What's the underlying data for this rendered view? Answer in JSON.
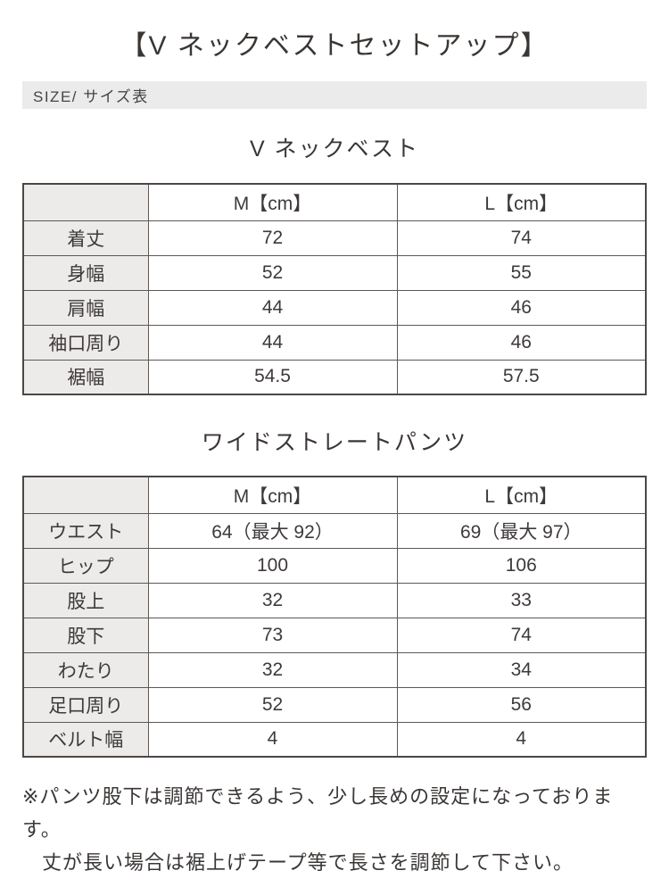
{
  "page": {
    "title": "【V ネックベストセットアップ】"
  },
  "size_bar": {
    "label": "SIZE/ サイズ表"
  },
  "tables": [
    {
      "title": "V ネックベスト",
      "columns": {
        "size_m": "M【cm】",
        "size_l": "L【cm】"
      },
      "rows": [
        {
          "label": "着丈",
          "m": "72",
          "l": "74"
        },
        {
          "label": "身幅",
          "m": "52",
          "l": "55"
        },
        {
          "label": "肩幅",
          "m": "44",
          "l": "46"
        },
        {
          "label": "袖口周り",
          "m": "44",
          "l": "46"
        },
        {
          "label": "裾幅",
          "m": "54.5",
          "l": "57.5"
        }
      ]
    },
    {
      "title": "ワイドストレートパンツ",
      "columns": {
        "size_m": "M【cm】",
        "size_l": "L【cm】"
      },
      "rows": [
        {
          "label": "ウエスト",
          "m": "64（最大 92）",
          "l": "69（最大 97）"
        },
        {
          "label": "ヒップ",
          "m": "100",
          "l": "106"
        },
        {
          "label": "股上",
          "m": "32",
          "l": "33"
        },
        {
          "label": "股下",
          "m": "73",
          "l": "74"
        },
        {
          "label": "わたり",
          "m": "32",
          "l": "34"
        },
        {
          "label": "足口周り",
          "m": "52",
          "l": "56"
        },
        {
          "label": "ベルト幅",
          "m": "4",
          "l": "4"
        }
      ]
    }
  ],
  "notes": {
    "line1": "※パンツ股下は調節できるよう、少し長めの設定になっております。",
    "line2": "丈が長い場合は裾上げテープ等で長さを調節して下さい。"
  },
  "colors": {
    "text": "#3e3a39",
    "table_border": "#4b4745",
    "header_cell_bg": "#ecebe9",
    "size_bar_bg": "#ebebeb"
  }
}
